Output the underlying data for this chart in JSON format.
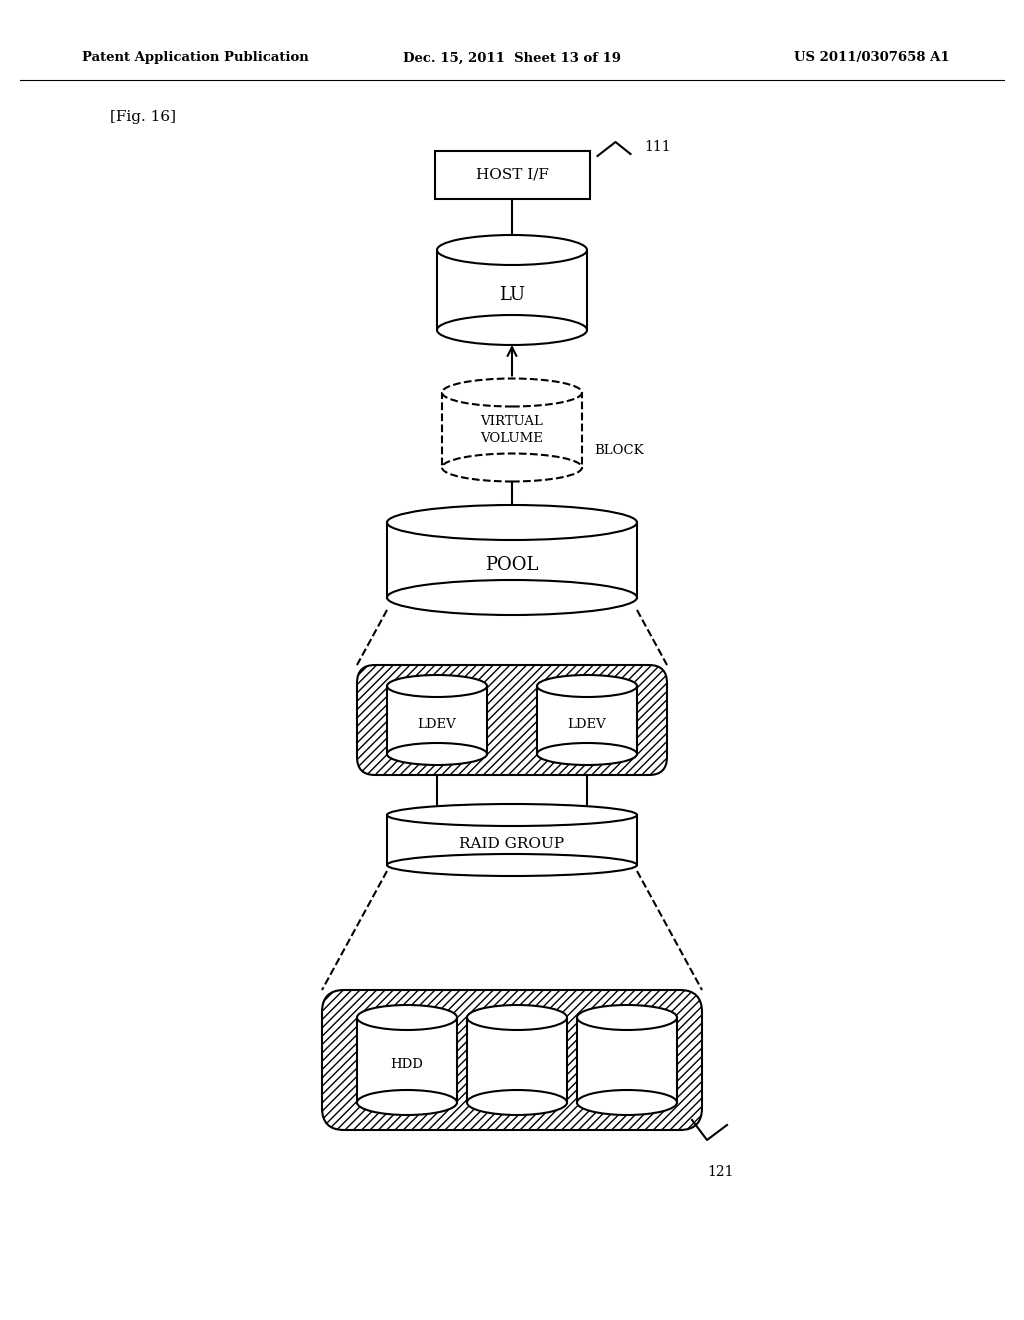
{
  "bg_color": "#ffffff",
  "header_left": "Patent Application Publication",
  "header_center": "Dec. 15, 2011  Sheet 13 of 19",
  "header_right": "US 2011/0307658 A1",
  "fig_label": "[Fig. 16]",
  "label_111": "111",
  "label_121": "121"
}
